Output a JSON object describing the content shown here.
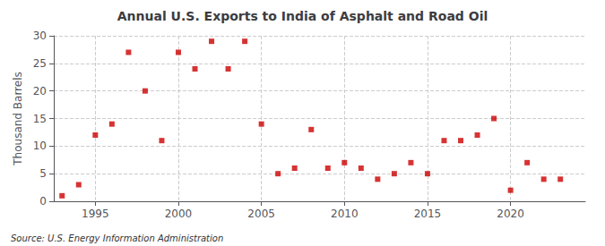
{
  "chart_data": {
    "type": "scatter",
    "title": "Annual U.S. Exports to India of Asphalt and Road Oil",
    "ylabel": "Thousand Barrels",
    "source": "Source: U.S. Energy Information Administration",
    "x": [
      1993,
      1994,
      1995,
      1996,
      1997,
      1998,
      1999,
      2000,
      2001,
      2002,
      2003,
      2004,
      2005,
      2006,
      2007,
      2008,
      2009,
      2010,
      2011,
      2012,
      2013,
      2014,
      2015,
      2016,
      2017,
      2018,
      2019,
      2020,
      2021,
      2022,
      2023
    ],
    "values": [
      1,
      3,
      12,
      14,
      27,
      20,
      11,
      27,
      24,
      29,
      24,
      29,
      14,
      5,
      6,
      13,
      6,
      7,
      6,
      4,
      5,
      7,
      5,
      11,
      11,
      12,
      15,
      2,
      7,
      4,
      4
    ],
    "color": "#cc0000",
    "marker": "square",
    "xlim": [
      1992.5,
      2024.5
    ],
    "xticks": [
      1995,
      2000,
      2005,
      2010,
      2015,
      2020
    ],
    "ylim": [
      0,
      30
    ],
    "yticks": [
      0,
      5,
      10,
      15,
      20,
      25,
      30
    ],
    "grid": true
  }
}
